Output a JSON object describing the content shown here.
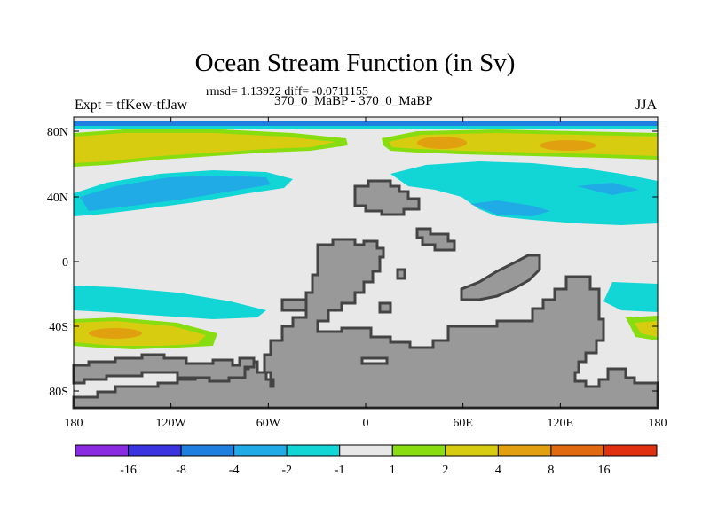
{
  "title": "Ocean Stream Function (in Sv)",
  "stats": "rmsd= 1.13922 diff= -0.0711155",
  "experiment": "Expt = tfKew-tfJaw",
  "case": "370_0_MaBP - 370_0_MaBP",
  "season": "JJA",
  "y_ticks": [
    "80N",
    "40N",
    "0",
    "40S",
    "80S"
  ],
  "x_ticks": [
    "180",
    "120W",
    "60W",
    "0",
    "60E",
    "120E",
    "180"
  ],
  "colorbar": {
    "boundaries": [
      "-16",
      "-8",
      "-4",
      "-2",
      "-1",
      "1",
      "2",
      "4",
      "8",
      "16"
    ],
    "colors": [
      "#8a2be2",
      "#3b32e0",
      "#1f7fe0",
      "#20aae6",
      "#12d6d6",
      "#e8e8e8",
      "#88dd10",
      "#d8cc10",
      "#e0a010",
      "#e06a10",
      "#e03010"
    ]
  },
  "colors": {
    "land": "#999999",
    "land_outline": "#444444",
    "background_field": "#e8e8e8"
  }
}
